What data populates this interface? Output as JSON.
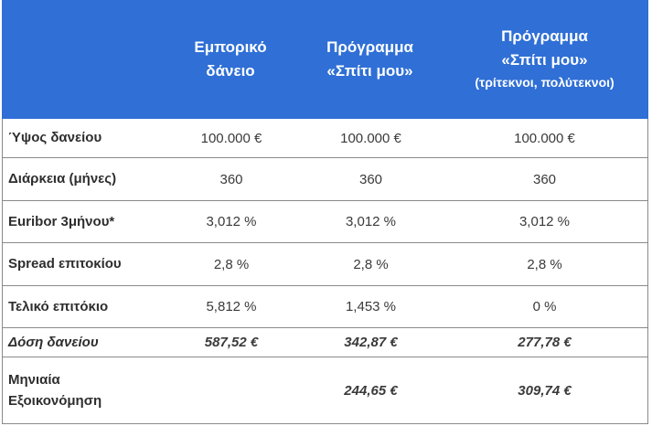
{
  "header": {
    "col1": {
      "line1": "Εμπορικό",
      "line2": "δάνειο"
    },
    "col2": {
      "line1": "Πρόγραμμα",
      "line2": "«Σπίτι μου»"
    },
    "col3": {
      "line1": "Πρόγραμμα",
      "line2": "«Σπίτι μου»",
      "line3": "(τρίτεκνοι, πολύτεκνοι)"
    }
  },
  "rows": [
    {
      "label": "Ύψος δανείου",
      "v1": "100.000 €",
      "v2": "100.000 €",
      "v3": "100.000 €"
    },
    {
      "label": "Διάρκεια (μήνες)",
      "v1": "360",
      "v2": "360",
      "v3": "360"
    },
    {
      "label": "Euribor 3μήνου*",
      "v1": "3,012 %",
      "v2": "3,012 %",
      "v3": "3,012 %"
    },
    {
      "label": "Spread επιτοκίου",
      "v1": "2,8 %",
      "v2": "2,8 %",
      "v3": "2,8 %"
    },
    {
      "label": "Τελικό επιτόκιο",
      "v1": "5,812 %",
      "v2": "1,453 %",
      "v3": "0 %"
    },
    {
      "label": "Δόση δανείου",
      "v1": "587,52 €",
      "v2": "342,87 €",
      "v3": "277,78 €"
    },
    {
      "label_line1": "Μηνιαία",
      "label_line2": "Εξοικονόμηση",
      "v1": "",
      "v2": "244,65 €",
      "v3": "309,74 €"
    }
  ],
  "colors": {
    "header_bg": "#2f6fd6",
    "header_text": "#ffffff",
    "border": "#8a8a8a"
  }
}
